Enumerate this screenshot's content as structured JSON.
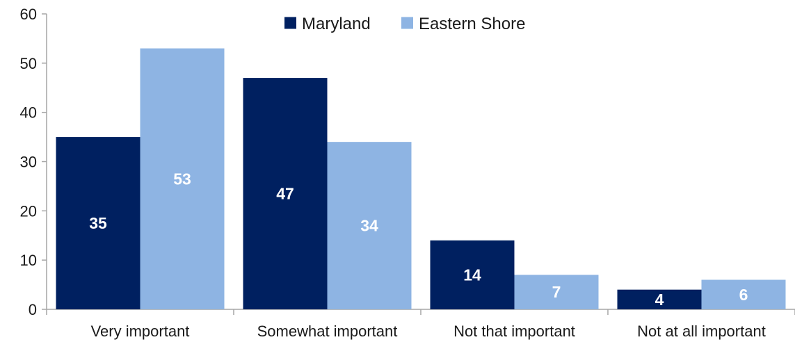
{
  "chart_data": {
    "type": "bar",
    "categories": [
      "Very important",
      "Somewhat important",
      "Not that important",
      "Not at all important"
    ],
    "series": [
      {
        "name": "Maryland",
        "color": "#002060",
        "values": [
          35,
          47,
          14,
          4
        ]
      },
      {
        "name": "Eastern Shore",
        "color": "#8EB4E3",
        "values": [
          53,
          34,
          7,
          6
        ]
      }
    ],
    "ylim": [
      0,
      60
    ],
    "yticks": [
      0,
      10,
      20,
      30,
      40,
      50,
      60
    ],
    "grid": false,
    "legend_position": "top-center",
    "data_labels": true,
    "axis_color": "#a6a6a6"
  }
}
